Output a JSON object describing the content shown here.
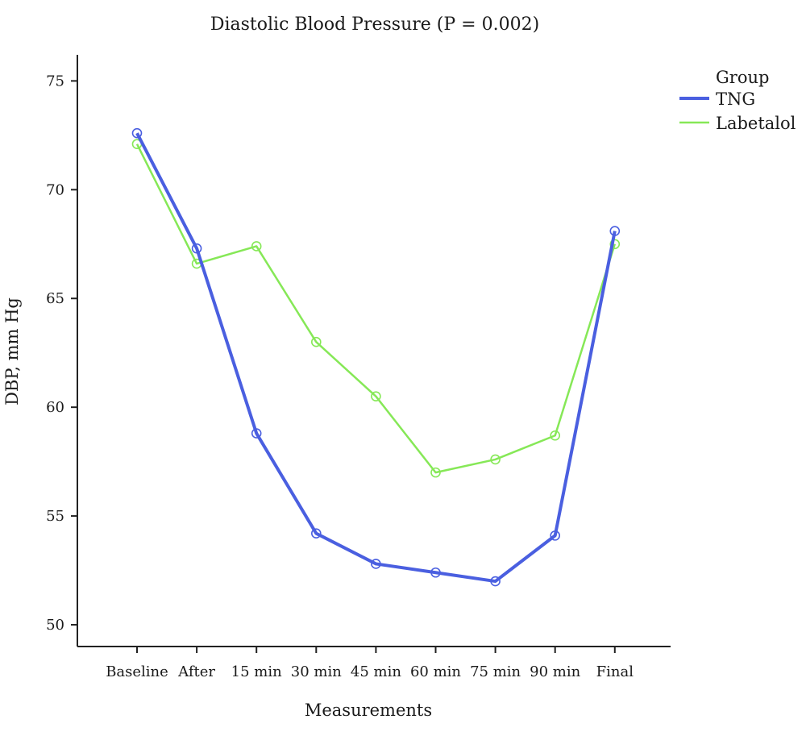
{
  "chart_data": {
    "type": "line",
    "title": "Diastolic Blood Pressure (P = 0.002)",
    "xlabel": "Measurements",
    "ylabel": "DBP, mm Hg",
    "ylim": [
      49,
      76.2
    ],
    "yticks": [
      50,
      55,
      60,
      65,
      70,
      75
    ],
    "categories": [
      "Baseline",
      "After",
      "15 min",
      "30 min",
      "45 min",
      "60 min",
      "75 min",
      "90 min",
      "Final"
    ],
    "legend": {
      "title": "Group",
      "position": "top-right"
    },
    "grid": false,
    "series": [
      {
        "name": "TNG",
        "color": "#4a5fe0",
        "values": [
          72.6,
          67.3,
          58.8,
          54.2,
          52.8,
          52.4,
          52.0,
          54.1,
          68.1
        ]
      },
      {
        "name": "Labetalol",
        "color": "#86e857",
        "values": [
          72.1,
          66.6,
          67.4,
          63.0,
          60.5,
          57.0,
          57.6,
          58.7,
          67.5
        ]
      }
    ]
  }
}
